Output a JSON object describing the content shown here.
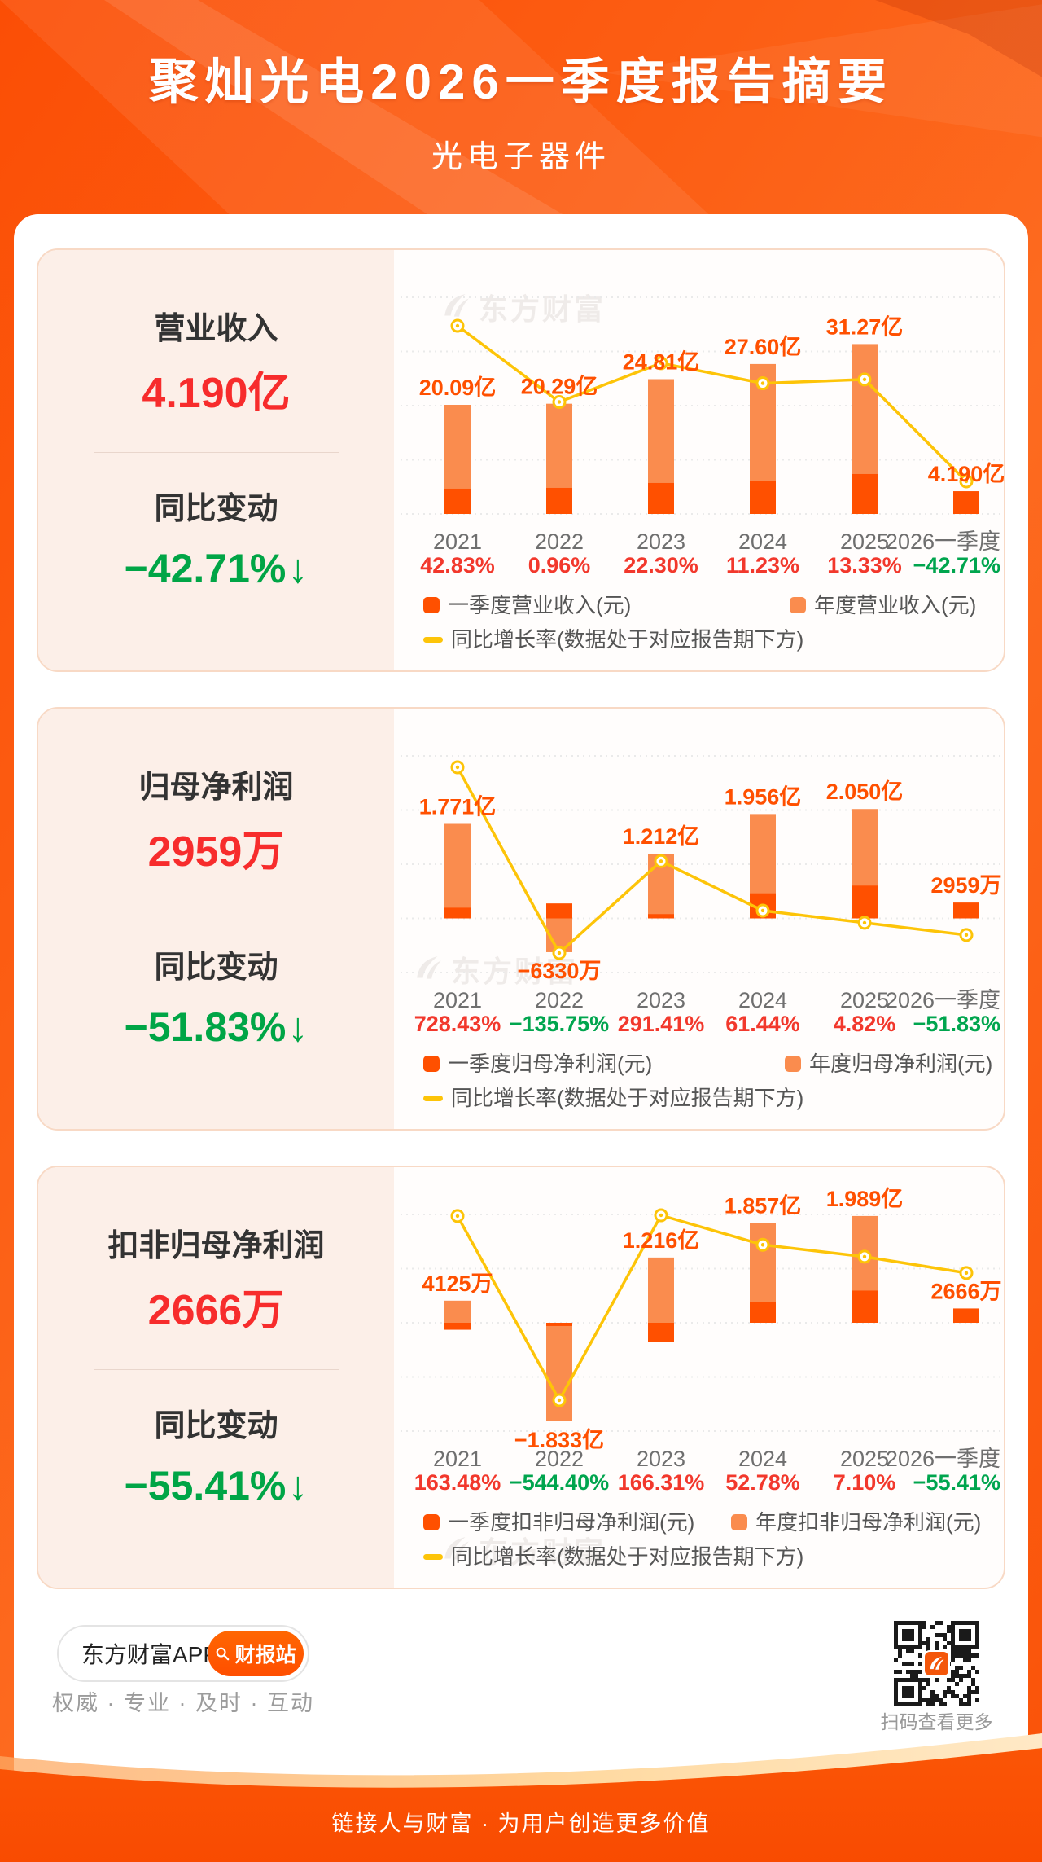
{
  "header": {
    "title": "聚灿光电2026一季度报告摘要",
    "subtitle": "光电子器件"
  },
  "watermark_text": "东方财富",
  "cards": [
    {
      "metric_label": "营业收入",
      "metric_value": "4.190亿",
      "change_label": "同比变动",
      "change_value": "−42.71%",
      "direction": "down"
    },
    {
      "metric_label": "归母净利润",
      "metric_value": "2959万",
      "change_label": "同比变动",
      "change_value": "−51.83%",
      "direction": "down"
    },
    {
      "metric_label": "扣非归母净利润",
      "metric_value": "2666万",
      "change_label": "同比变动",
      "change_value": "−55.41%",
      "direction": "down"
    }
  ],
  "chart_data": [
    {
      "type": "bar+line",
      "title": "营业收入",
      "categories": [
        "2021",
        "2022",
        "2023",
        "2024",
        "2025",
        "2026一季度"
      ],
      "series": [
        {
          "name": "一季度营业收入(元)",
          "unit": "亿",
          "values": [
            4.65,
            4.8,
            5.7,
            6.0,
            7.35,
            4.19
          ]
        },
        {
          "name": "年度营业收入(元)",
          "unit": "亿",
          "values": [
            20.09,
            20.29,
            24.81,
            27.6,
            31.27,
            null
          ]
        },
        {
          "name": "同比增长率(数据处于对应报告期下方)",
          "unit": "%",
          "values": [
            42.83,
            0.96,
            22.3,
            11.23,
            13.33,
            -42.71
          ]
        }
      ],
      "bar_labels": [
        "20.09亿",
        "20.29亿",
        "24.81亿",
        "27.60亿",
        "31.27亿",
        "4.190亿"
      ],
      "growth_labels": [
        "42.83%",
        "0.96%",
        "22.30%",
        "11.23%",
        "13.33%",
        "−42.71%"
      ],
      "legend": [
        "一季度营业收入(元)",
        "年度营业收入(元)",
        "同比增长率(数据处于对应报告期下方)"
      ],
      "grid": "dashed-horizontal",
      "legend_position": "bottom"
    },
    {
      "type": "bar+line",
      "title": "归母净利润",
      "categories": [
        "2021",
        "2022",
        "2023",
        "2024",
        "2025",
        "2026一季度"
      ],
      "series": [
        {
          "name": "一季度归母净利润(元)",
          "unit": "亿",
          "values": [
            0.2,
            0.28,
            0.08,
            0.47,
            0.614,
            0.2959
          ]
        },
        {
          "name": "年度归母净利润(元)",
          "unit": "亿",
          "values": [
            1.771,
            -0.633,
            1.212,
            1.956,
            2.05,
            null
          ]
        },
        {
          "name": "同比增长率(数据处于对应报告期下方)",
          "unit": "%",
          "values": [
            728.43,
            -135.75,
            291.41,
            61.44,
            4.82,
            -51.83
          ]
        }
      ],
      "bar_labels": [
        "1.771亿",
        "−6330万",
        "1.212亿",
        "1.956亿",
        "2.050亿",
        "2959万"
      ],
      "growth_labels": [
        "728.43%",
        "−135.75%",
        "291.41%",
        "61.44%",
        "4.82%",
        "−51.83%"
      ],
      "legend": [
        "一季度归母净利润(元)",
        "年度归母净利润(元)",
        "同比增长率(数据处于对应报告期下方)"
      ],
      "grid": "dashed-horizontal",
      "legend_position": "bottom"
    },
    {
      "type": "bar+line",
      "title": "扣非归母净利润",
      "categories": [
        "2021",
        "2022",
        "2023",
        "2024",
        "2025",
        "2026一季度"
      ],
      "series": [
        {
          "name": "一季度扣非归母净利润(元)",
          "unit": "亿",
          "values": [
            -0.13,
            -0.06,
            -0.36,
            0.39,
            0.6,
            0.2666
          ]
        },
        {
          "name": "年度扣非归母净利润(元)",
          "unit": "亿",
          "values": [
            0.4125,
            -1.833,
            1.216,
            1.857,
            1.989,
            null
          ]
        },
        {
          "name": "同比增长率(数据处于对应报告期下方)",
          "unit": "%",
          "values": [
            163.48,
            -544.4,
            166.31,
            52.78,
            7.1,
            -55.41
          ]
        }
      ],
      "bar_labels": [
        "4125万",
        "−1.833亿",
        "1.216亿",
        "1.857亿",
        "1.989亿",
        "2666万"
      ],
      "growth_labels": [
        "163.48%",
        "−544.40%",
        "166.31%",
        "52.78%",
        "7.10%",
        "−55.41%"
      ],
      "legend": [
        "一季度扣非归母净利润(元)",
        "年度扣非归母净利润(元)",
        "同比增长率(数据处于对应报告期下方)"
      ],
      "grid": "dashed-horizontal",
      "legend_position": "bottom"
    }
  ],
  "footer": {
    "app_name": "东方财富APP",
    "report_button": "财报站",
    "slogan": "权威 · 专业 · 及时 · 互动",
    "qr_caption": "扫码查看更多",
    "tagline": "链接人与财富 · 为用户创造更多价值"
  },
  "colors": {
    "accent": "#FF5000",
    "annual_bar": "#FA8C4E",
    "q1_bar": "#FF5000",
    "growth_line": "#FDC408",
    "bar_label_orange": "#FF5000",
    "percent_red": "#F2382C",
    "percent_green": "#00A54E",
    "value_red": "#F72C2C",
    "change_green": "#00A546",
    "axis_gray": "#6F6F6F"
  }
}
